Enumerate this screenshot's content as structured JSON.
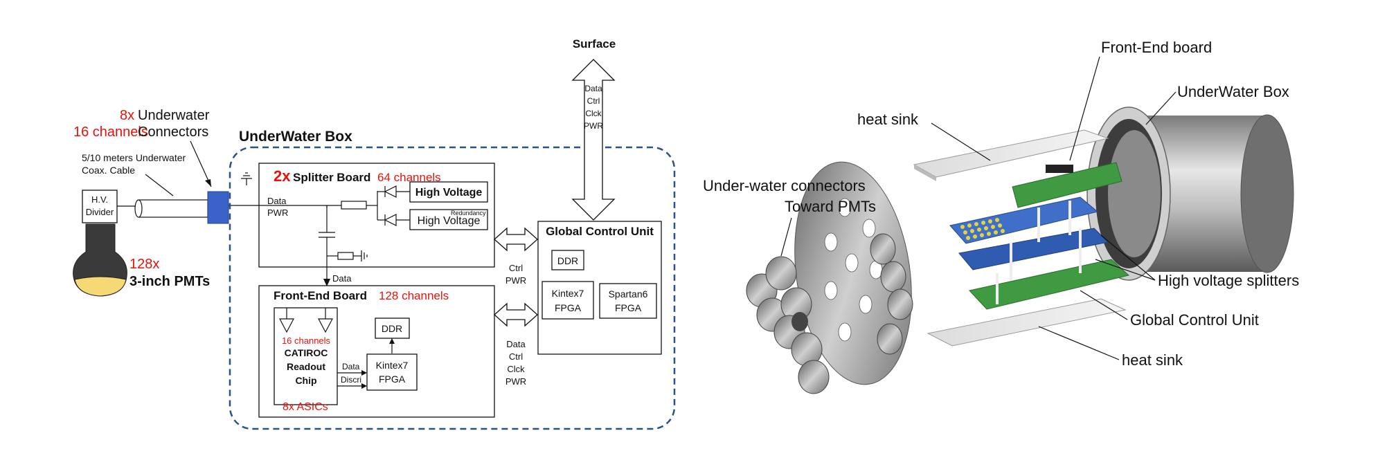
{
  "diagram": {
    "left": {
      "connectors": {
        "count": "8x",
        "label": "Underwater",
        "label2": "Connectors",
        "channels": "16 channels"
      },
      "cable": {
        "line1": "5/10 meters Underwater",
        "line2": "Coax. Cable"
      },
      "hv_divider": {
        "line1": "H.V.",
        "line2": "Divider"
      },
      "pmts": {
        "count": "128x",
        "label": "3-inch PMTs"
      },
      "underwater_box_title": "UnderWater Box",
      "surface": "Surface",
      "surface_signals": [
        "Data",
        "Ctrl",
        "Clck",
        "PWR"
      ],
      "splitter": {
        "count": "2x",
        "title": "Splitter Board",
        "channels": "64 channels",
        "data": "Data",
        "pwr": "PWR",
        "hv1": "High Voltage",
        "hv2": "High Voltage",
        "redundancy": "Redundancy"
      },
      "gcu": {
        "title": "Global Control Unit",
        "ddr": "DDR",
        "fpga1_line1": "Kintex7",
        "fpga1_line2": "FPGA",
        "fpga2_line1": "Spartan6",
        "fpga2_line2": "FPGA"
      },
      "link1": [
        "Ctrl",
        "PWR"
      ],
      "link2": [
        "Data",
        "Ctrl",
        "Clck",
        "PWR"
      ],
      "data_label": "Data",
      "frontend": {
        "title": "Front-End Board",
        "channels": "128 channels",
        "chip_channels": "16 channels",
        "chip_line1": "CATIROC",
        "chip_line2": "Readout",
        "chip_line3": "Chip",
        "asics": "8x ASICs",
        "sig1": "Data",
        "sig2": "Discri",
        "ddr": "DDR",
        "fpga_line1": "Kintex7",
        "fpga_line2": "FPGA"
      }
    },
    "right": {
      "front_end_board": "Front-End board",
      "underwater_box": "UnderWater Box",
      "heat_sink_top": "heat sink",
      "connectors_line1": "Under-water connectors",
      "connectors_line2": "Toward PMTs",
      "hv_splitters": "High voltage splitters",
      "gcu": "Global Control Unit",
      "heat_sink_bottom": "heat sink"
    }
  },
  "colors": {
    "accent_red": "#e8120c",
    "box_dash": "#2d4f8a",
    "connector_blue": "#3b63c7",
    "pmt_yellow": "#f6d874",
    "pcb_green": "#3f9a42",
    "pcb_blue": "#2f5bb0"
  }
}
